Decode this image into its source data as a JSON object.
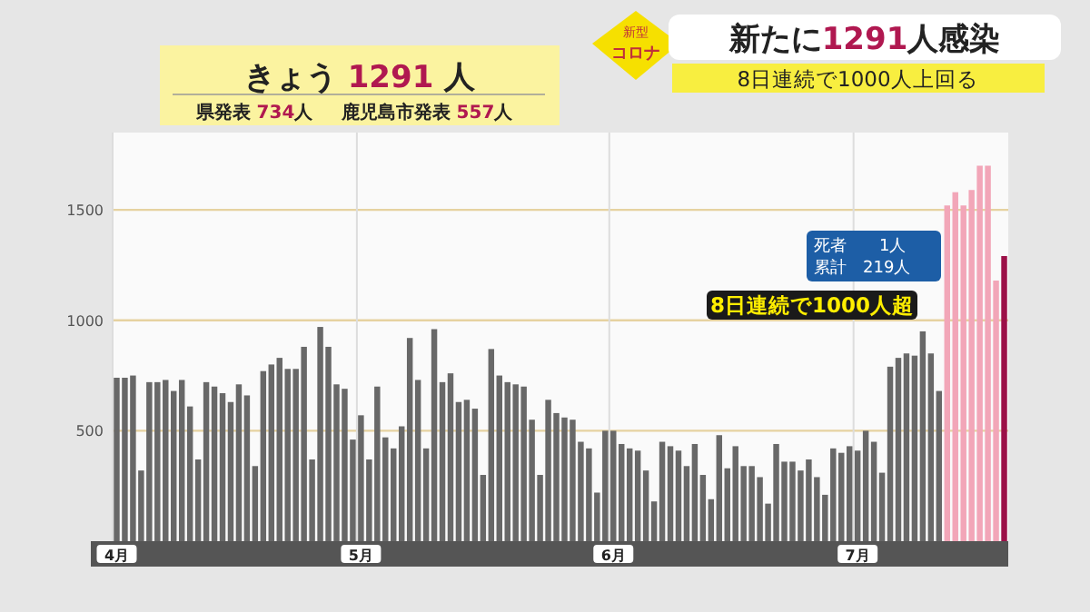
{
  "chart_data": {
    "type": "bar",
    "title": "新たに1291人感染",
    "subtitle": "8日連続で1000人上回る",
    "categories": [
      "4月",
      null,
      null,
      null,
      null,
      null,
      null,
      null,
      null,
      null,
      null,
      null,
      null,
      null,
      null,
      null,
      null,
      null,
      null,
      null,
      null,
      null,
      null,
      null,
      null,
      null,
      null,
      null,
      null,
      null,
      "5月",
      null,
      null,
      null,
      null,
      null,
      null,
      null,
      null,
      null,
      null,
      null,
      null,
      null,
      null,
      null,
      null,
      null,
      null,
      null,
      null,
      null,
      null,
      null,
      null,
      null,
      null,
      null,
      null,
      null,
      null,
      "6月",
      null,
      null,
      null,
      null,
      null,
      null,
      null,
      null,
      null,
      null,
      null,
      null,
      null,
      null,
      null,
      null,
      null,
      null,
      null,
      null,
      null,
      null,
      null,
      null,
      null,
      null,
      null,
      null,
      null,
      "7月",
      null,
      null,
      null,
      null,
      null,
      null,
      null,
      null,
      null,
      null,
      null,
      null,
      null,
      null,
      null,
      null,
      null,
      null
    ],
    "values": [
      740,
      740,
      750,
      320,
      720,
      720,
      730,
      680,
      730,
      610,
      370,
      720,
      700,
      670,
      630,
      710,
      660,
      340,
      770,
      800,
      830,
      780,
      780,
      880,
      370,
      970,
      880,
      710,
      690,
      460,
      570,
      370,
      700,
      470,
      420,
      520,
      920,
      730,
      420,
      960,
      720,
      760,
      630,
      640,
      600,
      300,
      870,
      750,
      720,
      710,
      700,
      550,
      300,
      640,
      580,
      560,
      550,
      450,
      420,
      220,
      500,
      500,
      440,
      420,
      410,
      320,
      180,
      450,
      430,
      410,
      340,
      440,
      300,
      190,
      480,
      330,
      430,
      340,
      340,
      290,
      170,
      440,
      360,
      360,
      320,
      370,
      290,
      210,
      420,
      400,
      430,
      410,
      500,
      450,
      310,
      790,
      830,
      850,
      840,
      950,
      850,
      680,
      1520,
      1580,
      1520,
      1590,
      1700,
      1700,
      1180,
      1291
    ],
    "colors": [
      "#686868",
      "#686868",
      "#686868",
      "#686868",
      "#686868",
      "#686868",
      "#686868",
      "#686868",
      "#686868",
      "#686868",
      "#686868",
      "#686868",
      "#686868",
      "#686868",
      "#686868",
      "#686868",
      "#686868",
      "#686868",
      "#686868",
      "#686868",
      "#686868",
      "#686868",
      "#686868",
      "#686868",
      "#686868",
      "#686868",
      "#686868",
      "#686868",
      "#686868",
      "#686868",
      "#686868",
      "#686868",
      "#686868",
      "#686868",
      "#686868",
      "#686868",
      "#686868",
      "#686868",
      "#686868",
      "#686868",
      "#686868",
      "#686868",
      "#686868",
      "#686868",
      "#686868",
      "#686868",
      "#686868",
      "#686868",
      "#686868",
      "#686868",
      "#686868",
      "#686868",
      "#686868",
      "#686868",
      "#686868",
      "#686868",
      "#686868",
      "#686868",
      "#686868",
      "#686868",
      "#686868",
      "#686868",
      "#686868",
      "#686868",
      "#686868",
      "#686868",
      "#686868",
      "#686868",
      "#686868",
      "#686868",
      "#686868",
      "#686868",
      "#686868",
      "#686868",
      "#686868",
      "#686868",
      "#686868",
      "#686868",
      "#686868",
      "#686868",
      "#686868",
      "#686868",
      "#686868",
      "#686868",
      "#686868",
      "#686868",
      "#686868",
      "#686868",
      "#686868",
      "#686868",
      "#686868",
      "#686868",
      "#686868",
      "#686868",
      "#686868",
      "#686868",
      "#686868",
      "#686868",
      "#686868",
      "#686868",
      "#686868",
      "#686868",
      "#f2a6b8",
      "#f2a6b8",
      "#f2a6b8",
      "#f2a6b8",
      "#f2a6b8",
      "#f2a6b8",
      "#f2a6b8",
      "#9c1048"
    ],
    "ylim": [
      0,
      1850
    ],
    "yticks": [
      500,
      1000,
      1500
    ],
    "grid": true,
    "annotations": [
      "新型",
      "コロナ",
      "きょう 1291 人",
      "県発表 734人",
      "鹿児島市発表 557人",
      "死者　　1人",
      "累計　219人",
      "8日連続で1000人超"
    ]
  }
}
